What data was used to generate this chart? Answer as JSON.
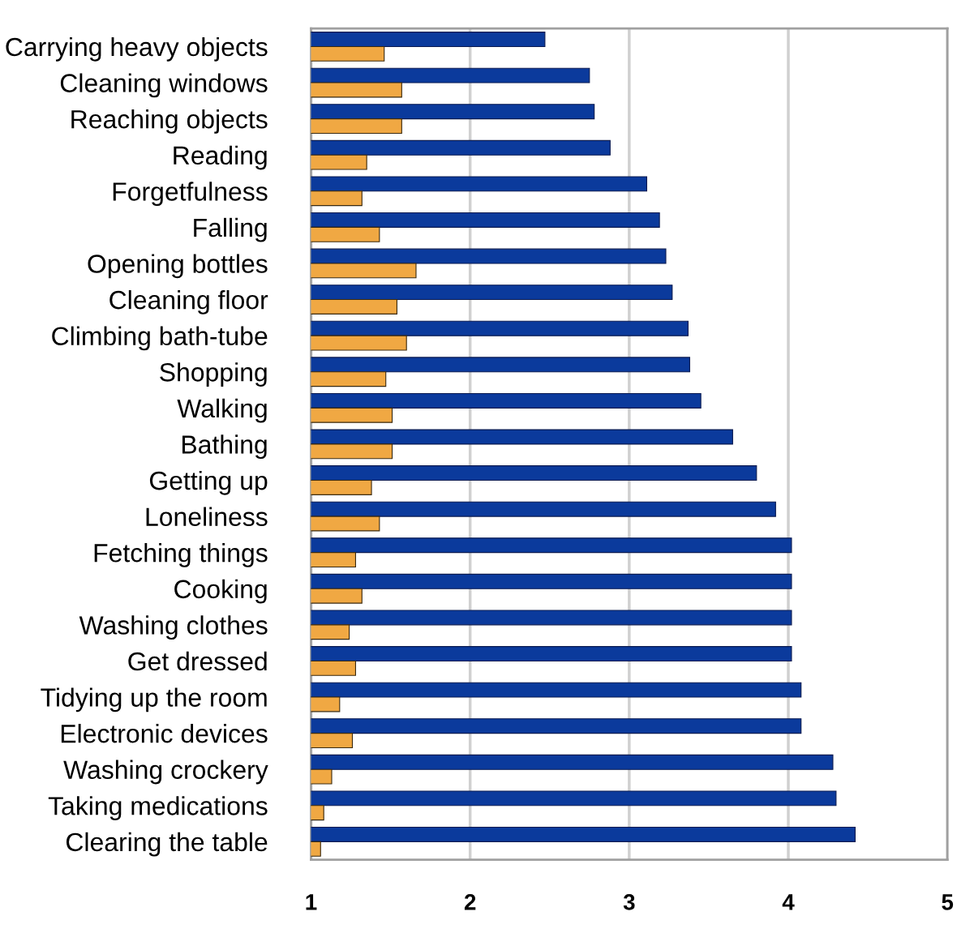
{
  "chart_data": {
    "type": "bar",
    "orientation": "horizontal",
    "categories": [
      "Carrying heavy objects",
      "Cleaning windows",
      "Reaching objects",
      "Reading",
      "Forgetfulness",
      "Falling",
      "Opening bottles",
      "Cleaning floor",
      "Climbing bath-tube",
      "Shopping",
      "Walking",
      "Bathing",
      "Getting up",
      "Loneliness",
      "Fetching things",
      "Cooking",
      "Washing clothes",
      "Get dressed",
      "Tidying up the room",
      "Electronic devices",
      "Washing crockery",
      "Taking medications",
      "Clearing the table"
    ],
    "series": [
      {
        "color": "#0b3a9c",
        "values": [
          2.47,
          2.75,
          2.78,
          2.88,
          3.11,
          3.19,
          3.23,
          3.27,
          3.37,
          3.38,
          3.45,
          3.65,
          3.8,
          3.92,
          4.02,
          4.02,
          4.02,
          4.02,
          4.08,
          4.08,
          4.28,
          4.3,
          4.42
        ]
      },
      {
        "color": "#f0a843",
        "values": [
          1.46,
          1.57,
          1.57,
          1.35,
          1.32,
          1.43,
          1.66,
          1.54,
          1.6,
          1.47,
          1.51,
          1.51,
          1.38,
          1.43,
          1.28,
          1.32,
          1.24,
          1.28,
          1.18,
          1.26,
          1.13,
          1.08,
          1.06
        ]
      }
    ],
    "xlim": [
      1,
      5
    ],
    "xticks": [
      1,
      2,
      3,
      4,
      5
    ],
    "grid": "x",
    "legend": false
  }
}
